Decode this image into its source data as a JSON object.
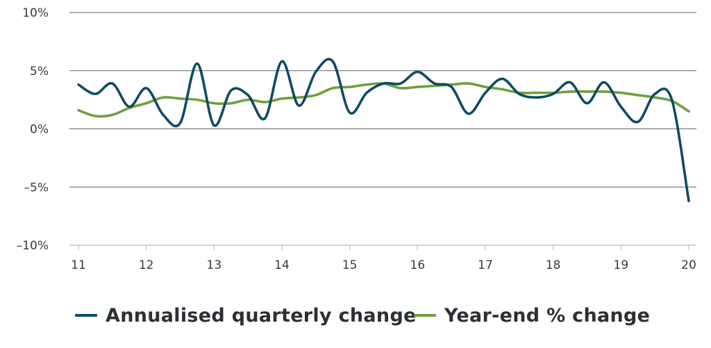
{
  "chart_data": {
    "type": "line",
    "title": "",
    "xlabel": "",
    "ylabel": "",
    "xlim": [
      11,
      20
    ],
    "ylim": [
      -10,
      10
    ],
    "x_ticks": [
      11,
      12,
      13,
      14,
      15,
      16,
      17,
      18,
      19,
      20
    ],
    "x_tick_labels": [
      "11",
      "12",
      "13",
      "14",
      "15",
      "16",
      "17",
      "18",
      "19",
      "20"
    ],
    "y_ticks": [
      10,
      5,
      0,
      -5,
      -10
    ],
    "y_tick_labels": [
      "10%",
      "5%",
      "0%",
      "–5%",
      "–10%"
    ],
    "grid": "horizontal",
    "legend": "bottom",
    "series": [
      {
        "name": "Annualised quarterly change",
        "color": "#0e4a63",
        "x": [
          11,
          11.25,
          11.5,
          11.75,
          12,
          12.25,
          12.5,
          12.75,
          13,
          13.25,
          13.5,
          13.75,
          14,
          14.25,
          14.5,
          14.75,
          15,
          15.25,
          15.5,
          15.75,
          16,
          16.25,
          16.5,
          16.75,
          17,
          17.25,
          17.5,
          17.75,
          18,
          18.25,
          18.5,
          18.75,
          19,
          19.25,
          19.5,
          19.75,
          20
        ],
        "y": [
          3.8,
          3.0,
          3.9,
          1.9,
          3.5,
          1.2,
          0.5,
          5.6,
          0.3,
          3.3,
          2.9,
          0.9,
          5.8,
          2.0,
          4.9,
          5.8,
          1.4,
          3.1,
          3.9,
          3.9,
          4.9,
          3.9,
          3.6,
          1.3,
          3.1,
          4.3,
          3.0,
          2.7,
          3.0,
          4.0,
          2.2,
          4.0,
          1.9,
          0.6,
          3.0,
          2.5,
          -6.2
        ]
      },
      {
        "name": "Year-end % change",
        "color": "#6f9f3b",
        "x": [
          11,
          11.25,
          11.5,
          11.75,
          12,
          12.25,
          12.5,
          12.75,
          13,
          13.25,
          13.5,
          13.75,
          14,
          14.25,
          14.5,
          14.75,
          15,
          15.25,
          15.5,
          15.75,
          16,
          16.25,
          16.5,
          16.75,
          17,
          17.25,
          17.5,
          17.75,
          18,
          18.25,
          18.5,
          18.75,
          19,
          19.25,
          19.5,
          19.75,
          20
        ],
        "y": [
          1.6,
          1.1,
          1.2,
          1.8,
          2.2,
          2.7,
          2.6,
          2.5,
          2.2,
          2.2,
          2.5,
          2.3,
          2.6,
          2.7,
          2.9,
          3.5,
          3.6,
          3.8,
          3.9,
          3.5,
          3.6,
          3.7,
          3.8,
          3.9,
          3.6,
          3.4,
          3.1,
          3.1,
          3.1,
          3.2,
          3.2,
          3.2,
          3.1,
          2.9,
          2.7,
          2.4,
          1.5
        ]
      }
    ]
  }
}
